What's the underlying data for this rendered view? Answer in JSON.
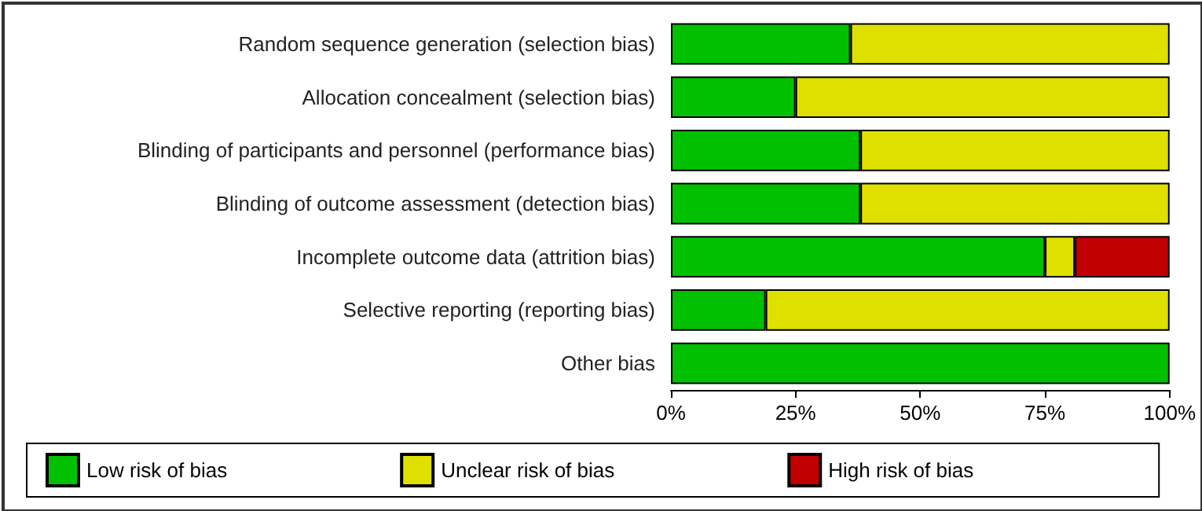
{
  "chart_data": {
    "type": "bar",
    "orientation": "horizontal",
    "stacked": true,
    "categories": [
      "Random sequence generation (selection bias)",
      "Allocation concealment (selection bias)",
      "Blinding of participants and personnel (performance bias)",
      "Blinding of outcome assessment (detection bias)",
      "Incomplete outcome data (attrition bias)",
      "Selective reporting (reporting bias)",
      "Other bias"
    ],
    "series": [
      {
        "name": "Low risk of bias",
        "color": "#00c000",
        "values": [
          36,
          25,
          38,
          38,
          75,
          19,
          100
        ]
      },
      {
        "name": "Unclear risk of bias",
        "color": "#e0e000",
        "values": [
          64,
          75,
          62,
          62,
          6,
          81,
          0
        ]
      },
      {
        "name": "High risk of bias",
        "color": "#c00000",
        "values": [
          0,
          0,
          0,
          0,
          19,
          0,
          0
        ]
      }
    ],
    "xlim": [
      0,
      100
    ],
    "xticks": [
      {
        "value": 0,
        "label": "0%"
      },
      {
        "value": 25,
        "label": "25%"
      },
      {
        "value": 50,
        "label": "50%"
      },
      {
        "value": 75,
        "label": "75%"
      },
      {
        "value": 100,
        "label": "100%"
      }
    ],
    "legend": "bottom"
  }
}
